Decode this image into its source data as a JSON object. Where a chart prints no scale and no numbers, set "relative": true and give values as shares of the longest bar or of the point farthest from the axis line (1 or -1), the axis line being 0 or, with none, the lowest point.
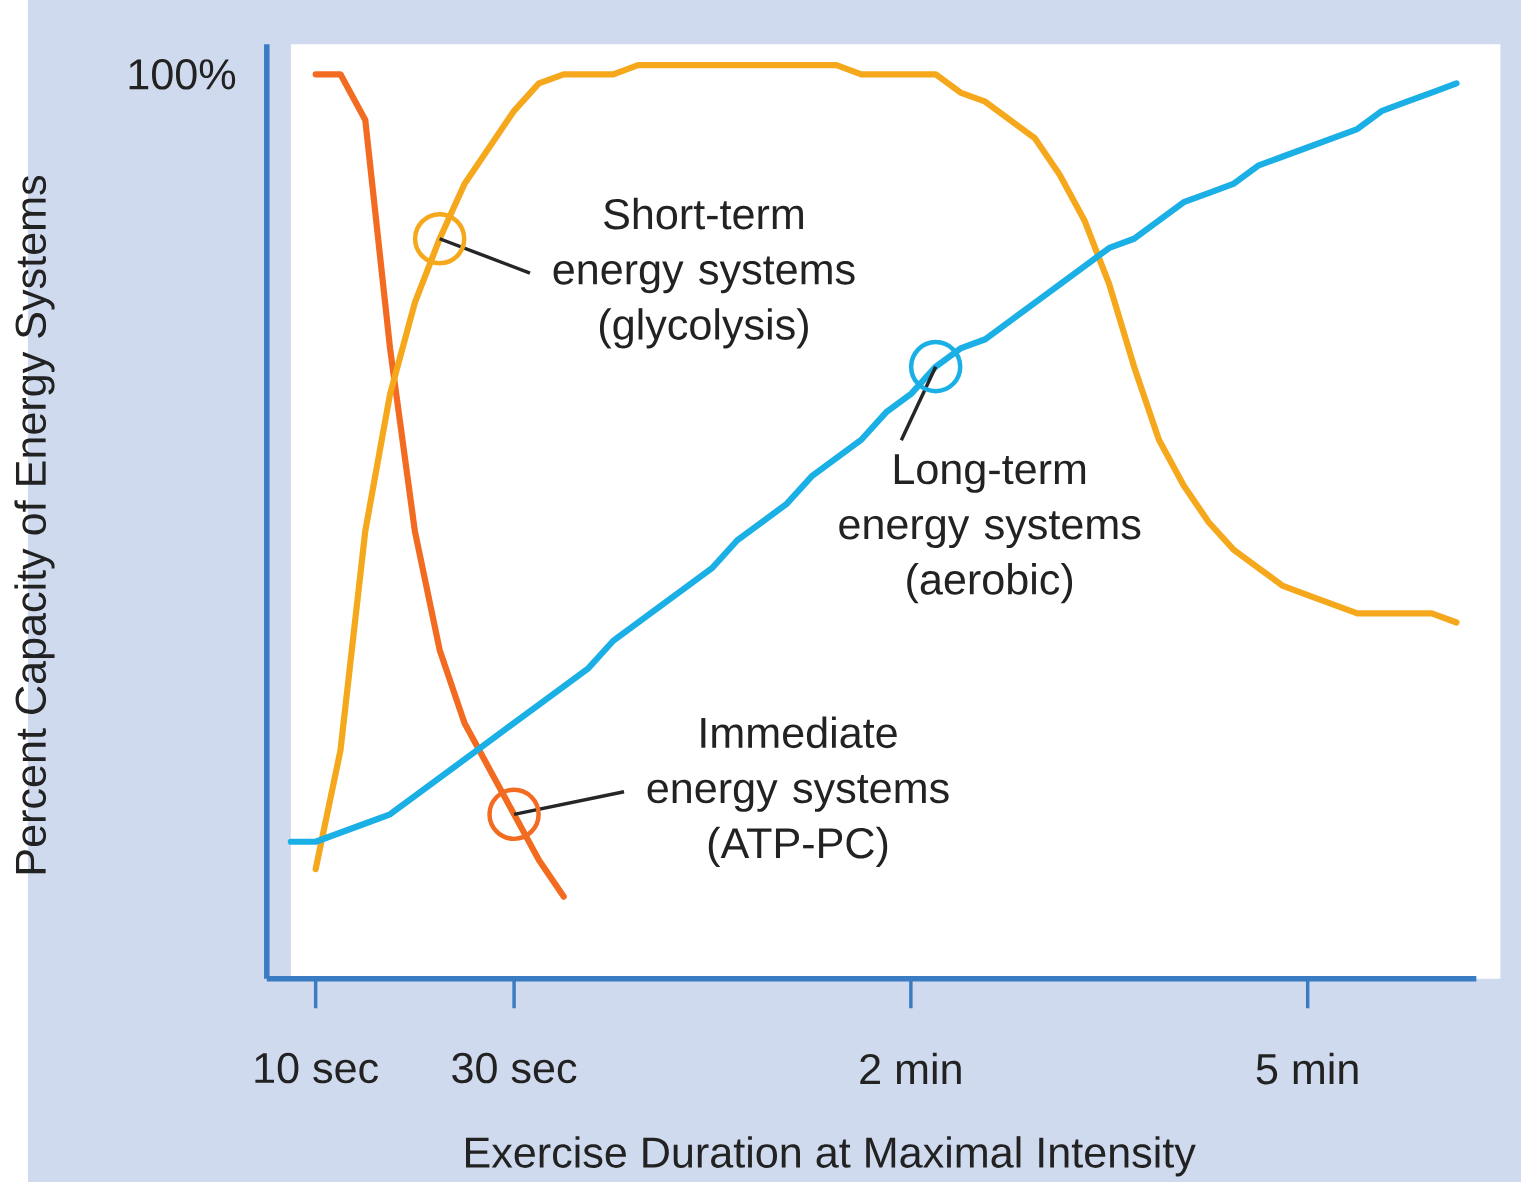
{
  "chart_data": {
    "type": "line",
    "xlabel": "Exercise Duration at Maximal Intensity",
    "ylabel": "Percent Capacity of Energy Systems",
    "relative": true,
    "annotations": [
      "100%"
    ],
    "categories": [
      null,
      "10 sec",
      null,
      null,
      null,
      null,
      null,
      null,
      null,
      "30 sec",
      null,
      null,
      null,
      null,
      null,
      null,
      null,
      null,
      null,
      null,
      null,
      null,
      null,
      null,
      null,
      "2 min",
      null,
      null,
      null,
      null,
      null,
      null,
      null,
      null,
      null,
      null,
      null,
      null,
      null,
      null,
      null,
      "5 min",
      null,
      null,
      null,
      null,
      null,
      null
    ],
    "series": [
      {
        "name": "Immediate energy systems (ATP-PC)",
        "color": "#f26b21",
        "values": [
          null,
          0.99,
          0.99,
          0.94,
          0.69,
          0.49,
          0.36,
          0.28,
          0.23,
          0.18,
          0.13,
          0.09,
          null,
          null,
          null,
          null,
          null,
          null,
          null,
          null,
          null,
          null,
          null,
          null,
          null,
          null,
          null,
          null,
          null,
          null,
          null,
          null,
          null,
          null,
          null,
          null,
          null,
          null,
          null,
          null,
          null,
          null,
          null,
          null,
          null,
          null,
          null,
          null
        ]
      },
      {
        "name": "Short-term energy systems (glycolysis)",
        "color": "#f5a81c",
        "values": [
          null,
          0.12,
          0.25,
          0.49,
          0.64,
          0.74,
          0.81,
          0.87,
          0.91,
          0.95,
          0.98,
          0.99,
          0.99,
          0.99,
          1.0,
          1.0,
          1.0,
          1.0,
          1.0,
          1.0,
          1.0,
          1.0,
          1.0,
          0.99,
          0.99,
          0.99,
          0.99,
          0.97,
          0.96,
          0.94,
          0.92,
          0.88,
          0.83,
          0.76,
          0.67,
          0.59,
          0.54,
          0.5,
          0.47,
          0.45,
          0.43,
          0.42,
          0.41,
          0.4,
          0.4,
          0.4,
          0.4,
          0.39
        ]
      },
      {
        "name": "Long-term energy systems (aerobic)",
        "color": "#1ab0e6",
        "values": [
          0.15,
          0.15,
          0.16,
          0.17,
          0.18,
          0.2,
          0.22,
          0.24,
          0.26,
          0.28,
          0.3,
          0.32,
          0.34,
          0.37,
          0.39,
          0.41,
          0.43,
          0.45,
          0.48,
          0.5,
          0.52,
          0.55,
          0.57,
          0.59,
          0.62,
          0.64,
          0.67,
          0.69,
          0.7,
          0.72,
          0.74,
          0.76,
          0.78,
          0.8,
          0.81,
          0.83,
          0.85,
          0.86,
          0.87,
          0.89,
          0.9,
          0.91,
          0.92,
          0.93,
          0.95,
          0.96,
          0.97,
          0.98
        ]
      }
    ]
  }
}
